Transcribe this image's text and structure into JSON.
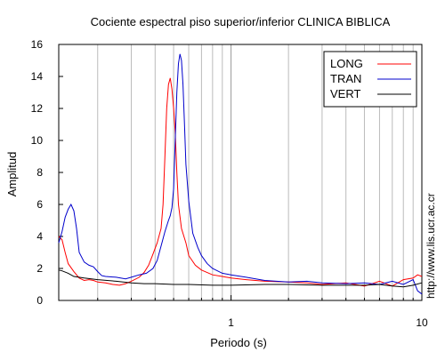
{
  "chart_data": {
    "type": "line",
    "title": "Cociente espectral piso superior/inferior  CLINICA BIBLICA",
    "xlabel": "Periodo (s)",
    "ylabel": "Amplitud",
    "xscale": "log",
    "xlim": [
      0.125,
      10
    ],
    "ylim": [
      0,
      16
    ],
    "x_ticks": [
      1,
      10
    ],
    "x_tick_labels": [
      "1",
      "10"
    ],
    "y_ticks": [
      0,
      2,
      4,
      6,
      8,
      10,
      12,
      14,
      16
    ],
    "y_tick_labels": [
      "0",
      "2",
      "4",
      "6",
      "8",
      "10",
      "12",
      "14",
      "16"
    ],
    "grid": "vertical minor and major lines at 0.2–0.9 and 2–9",
    "legend_position": "top-right",
    "side_note": "http://www.lis.ucr.ac.cr",
    "series": [
      {
        "name": "LONG",
        "color": "#ff0000",
        "points": [
          [
            0.125,
            4.0
          ],
          [
            0.13,
            3.8
          ],
          [
            0.135,
            3.0
          ],
          [
            0.14,
            2.3
          ],
          [
            0.15,
            1.8
          ],
          [
            0.16,
            1.4
          ],
          [
            0.17,
            1.25
          ],
          [
            0.18,
            1.3
          ],
          [
            0.19,
            1.25
          ],
          [
            0.2,
            1.15
          ],
          [
            0.22,
            1.1
          ],
          [
            0.24,
            1.0
          ],
          [
            0.26,
            0.95
          ],
          [
            0.28,
            1.05
          ],
          [
            0.3,
            1.2
          ],
          [
            0.33,
            1.45
          ],
          [
            0.35,
            1.75
          ],
          [
            0.37,
            2.2
          ],
          [
            0.39,
            2.9
          ],
          [
            0.41,
            3.6
          ],
          [
            0.43,
            4.5
          ],
          [
            0.44,
            6.0
          ],
          [
            0.45,
            9.0
          ],
          [
            0.46,
            12.0
          ],
          [
            0.47,
            13.5
          ],
          [
            0.48,
            13.9
          ],
          [
            0.49,
            13.2
          ],
          [
            0.5,
            12.0
          ],
          [
            0.51,
            10.5
          ],
          [
            0.52,
            8.0
          ],
          [
            0.53,
            6.0
          ],
          [
            0.55,
            4.5
          ],
          [
            0.58,
            3.6
          ],
          [
            0.6,
            2.8
          ],
          [
            0.65,
            2.2
          ],
          [
            0.7,
            1.9
          ],
          [
            0.8,
            1.6
          ],
          [
            0.9,
            1.5
          ],
          [
            1.0,
            1.4
          ],
          [
            1.2,
            1.3
          ],
          [
            1.5,
            1.2
          ],
          [
            2.0,
            1.15
          ],
          [
            2.5,
            1.1
          ],
          [
            3.0,
            1.0
          ],
          [
            4.0,
            1.1
          ],
          [
            5.0,
            0.9
          ],
          [
            6.0,
            1.2
          ],
          [
            7.0,
            0.9
          ],
          [
            8.0,
            1.3
          ],
          [
            9.0,
            1.4
          ],
          [
            9.5,
            1.6
          ],
          [
            10.0,
            1.5
          ]
        ]
      },
      {
        "name": "TRAN",
        "color": "#0000cc",
        "points": [
          [
            0.125,
            3.6
          ],
          [
            0.13,
            4.3
          ],
          [
            0.135,
            5.2
          ],
          [
            0.14,
            5.7
          ],
          [
            0.145,
            6.0
          ],
          [
            0.15,
            5.6
          ],
          [
            0.155,
            4.5
          ],
          [
            0.16,
            3.0
          ],
          [
            0.17,
            2.4
          ],
          [
            0.18,
            2.2
          ],
          [
            0.19,
            2.1
          ],
          [
            0.2,
            1.8
          ],
          [
            0.21,
            1.55
          ],
          [
            0.22,
            1.5
          ],
          [
            0.25,
            1.45
          ],
          [
            0.28,
            1.35
          ],
          [
            0.3,
            1.45
          ],
          [
            0.33,
            1.6
          ],
          [
            0.36,
            1.7
          ],
          [
            0.39,
            2.0
          ],
          [
            0.41,
            2.5
          ],
          [
            0.43,
            3.4
          ],
          [
            0.45,
            4.3
          ],
          [
            0.47,
            5.0
          ],
          [
            0.48,
            5.3
          ],
          [
            0.49,
            5.8
          ],
          [
            0.5,
            7.0
          ],
          [
            0.51,
            10.0
          ],
          [
            0.52,
            13.0
          ],
          [
            0.53,
            14.8
          ],
          [
            0.54,
            15.4
          ],
          [
            0.55,
            15.0
          ],
          [
            0.56,
            13.5
          ],
          [
            0.57,
            11.0
          ],
          [
            0.58,
            8.5
          ],
          [
            0.6,
            6.2
          ],
          [
            0.63,
            4.2
          ],
          [
            0.67,
            3.3
          ],
          [
            0.7,
            2.8
          ],
          [
            0.75,
            2.3
          ],
          [
            0.8,
            2.0
          ],
          [
            0.9,
            1.7
          ],
          [
            1.0,
            1.6
          ],
          [
            1.2,
            1.45
          ],
          [
            1.5,
            1.25
          ],
          [
            2.0,
            1.15
          ],
          [
            2.5,
            1.2
          ],
          [
            3.0,
            1.1
          ],
          [
            4.0,
            1.05
          ],
          [
            5.0,
            1.1
          ],
          [
            6.0,
            1.0
          ],
          [
            7.0,
            1.2
          ],
          [
            8.0,
            1.0
          ],
          [
            9.0,
            1.3
          ],
          [
            9.5,
            0.6
          ],
          [
            10.0,
            0.4
          ]
        ]
      },
      {
        "name": "VERT",
        "color": "#000000",
        "points": [
          [
            0.125,
            1.9
          ],
          [
            0.13,
            1.85
          ],
          [
            0.14,
            1.7
          ],
          [
            0.15,
            1.5
          ],
          [
            0.17,
            1.4
          ],
          [
            0.2,
            1.3
          ],
          [
            0.25,
            1.2
          ],
          [
            0.3,
            1.1
          ],
          [
            0.35,
            1.05
          ],
          [
            0.4,
            1.05
          ],
          [
            0.5,
            1.0
          ],
          [
            0.6,
            1.0
          ],
          [
            0.8,
            0.95
          ],
          [
            1.0,
            0.95
          ],
          [
            1.5,
            1.0
          ],
          [
            2.0,
            1.0
          ],
          [
            3.0,
            0.95
          ],
          [
            4.0,
            0.95
          ],
          [
            5.0,
            0.95
          ],
          [
            6.0,
            1.0
          ],
          [
            7.0,
            0.9
          ],
          [
            8.0,
            0.85
          ],
          [
            9.0,
            0.95
          ],
          [
            10.0,
            1.1
          ]
        ]
      }
    ]
  }
}
